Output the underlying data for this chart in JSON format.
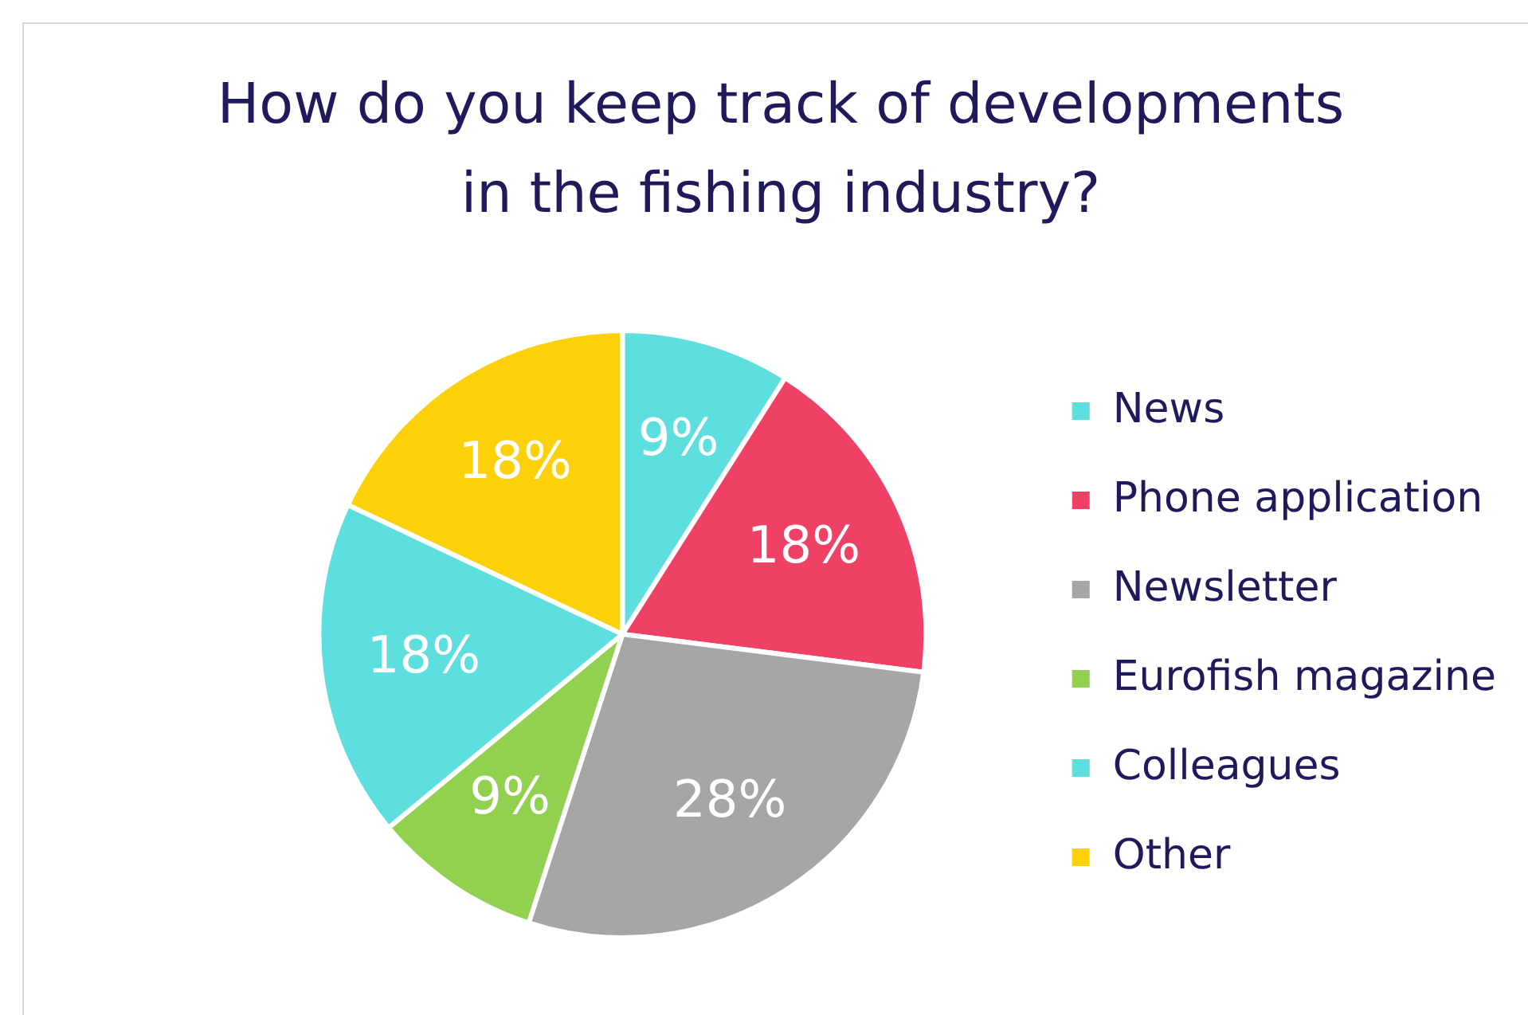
{
  "chart_data": {
    "type": "pie",
    "title": "How do you keep track of developments in the fishing industry?",
    "categories": [
      "News",
      "Phone application",
      "Newsletter",
      "Eurofish magazine",
      "Colleagues",
      "Other"
    ],
    "values": [
      9,
      18,
      28,
      9,
      18,
      18
    ],
    "colors": [
      "#5ddfe0",
      "#ef4166",
      "#a6a6a6",
      "#92d050",
      "#5ddfe0",
      "#fdd10a"
    ],
    "value_labels": [
      "9%",
      "18%",
      "28%",
      "9%",
      "18%",
      "18%"
    ],
    "legend": "right"
  }
}
